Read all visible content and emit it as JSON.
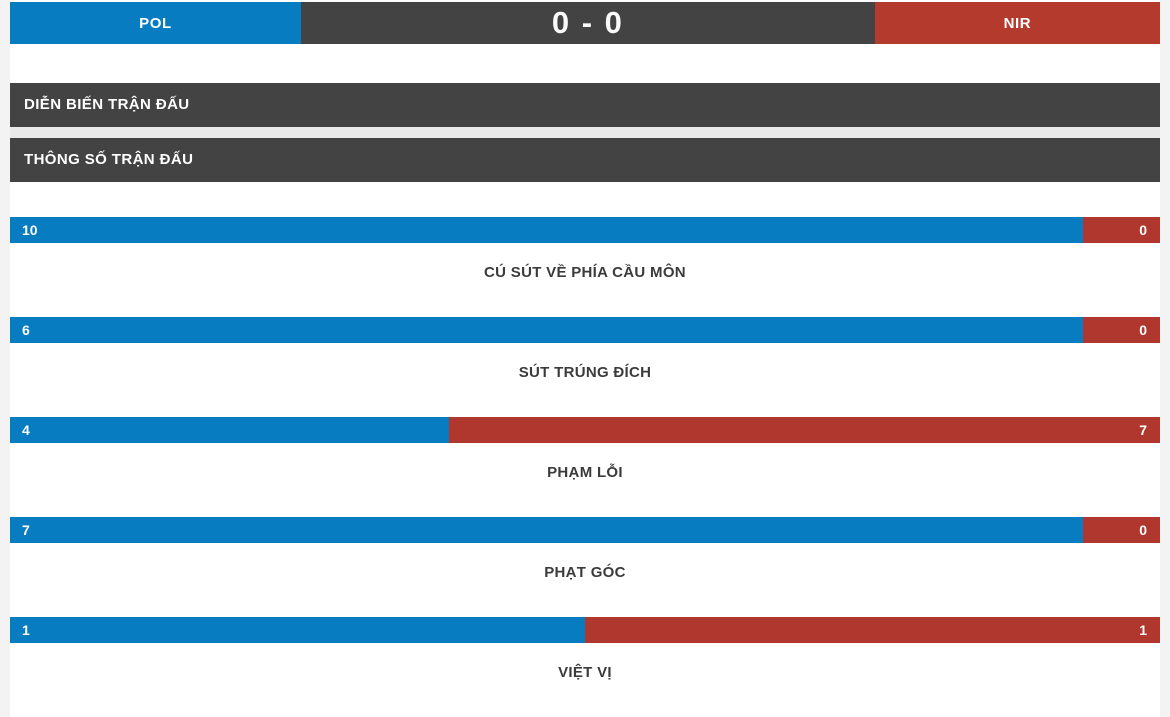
{
  "scoreboard": {
    "home_code": "POL",
    "away_code": "NIR",
    "score": "0 - 0"
  },
  "sections": {
    "events_label": "DIỄN BIẾN TRẬN ĐẤU",
    "stats_label": "THÔNG SỐ TRẬN ĐẤU"
  },
  "stats": [
    {
      "label": "CÚ SÚT VỀ PHÍA CẦU MÔN",
      "home": 10,
      "away": 0
    },
    {
      "label": "SÚT TRÚNG ĐÍCH",
      "home": 6,
      "away": 0
    },
    {
      "label": "PHẠM LỖI",
      "home": 4,
      "away": 7
    },
    {
      "label": "PHẠT GÓC",
      "home": 7,
      "away": 0
    },
    {
      "label": "VIỆT VỊ",
      "home": 1,
      "away": 1
    }
  ],
  "colors": {
    "home": "#077cc1",
    "away": "#b0372e",
    "away_badge": "#b53a2e",
    "header_bg": "#434343",
    "divider": "#eaeaea",
    "page_bg": "#f3f3f3",
    "label_text": "#3b3b3b"
  }
}
